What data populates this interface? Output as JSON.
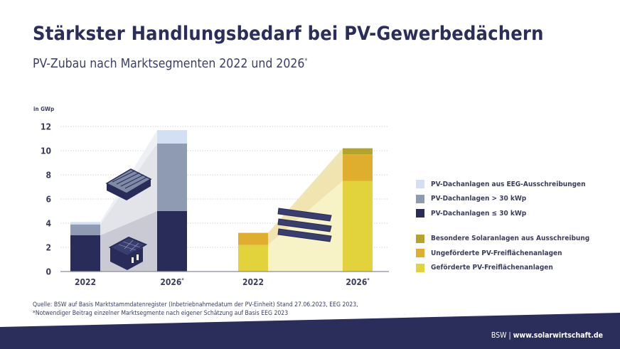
{
  "title": "Stärkster Handlungsbedarf bei PV-Gewerbedächern",
  "subtitle": "PV-Zubau nach Marktsegmenten 2022 und 2026",
  "subtitle_mark": "*",
  "chart_data": {
    "type": "bar",
    "stacked": true,
    "ylabel": "in GWp",
    "ylim": [
      0,
      12
    ],
    "yticks": [
      0,
      2,
      4,
      6,
      8,
      10,
      12
    ],
    "grid": true,
    "legend_position": "right",
    "categories": [
      "2022",
      "2026*",
      "2022",
      "2026*"
    ],
    "groups": [
      {
        "categories": [
          0,
          1
        ],
        "series": [
          {
            "name": "PV-Dachanlagen ≤ 30 kWp",
            "color": "#292c58",
            "values": [
              3.0,
              5.0
            ]
          },
          {
            "name": "PV-Dachanlagen > 30 kWp",
            "color": "#8e9bb2",
            "values": [
              0.9,
              5.6
            ]
          },
          {
            "name": "PV-Dachanlagen aus EEG-Ausschreibungen",
            "color": "#d3dff2",
            "values": [
              0.2,
              1.1
            ]
          }
        ]
      },
      {
        "categories": [
          2,
          3
        ],
        "series": [
          {
            "name": "Geförderte PV-Freiflächenanlagen",
            "color": "#e2d33c",
            "values": [
              2.2,
              7.5
            ]
          },
          {
            "name": "Ungeförderte PV-Freiflächenanlagen",
            "color": "#dfae2e",
            "values": [
              1.0,
              2.2
            ]
          },
          {
            "name": "Besondere Solaranlagen aus Ausschreibung",
            "color": "#b3a52c",
            "values": [
              0.0,
              0.5
            ]
          }
        ]
      }
    ]
  },
  "legend": [
    {
      "label": "PV-Dachanlagen aus EEG-Ausschreibungen",
      "color": "#d3dff2"
    },
    {
      "label": "PV-Dachanlagen > 30 kWp",
      "color": "#8e9bb2"
    },
    {
      "label": "PV-Dachanlagen ≤ 30 kWp",
      "color": "#292c58"
    },
    {
      "label": "Besondere Solaranlagen aus Ausschreibung",
      "color": "#b3a52c"
    },
    {
      "label": "Ungeförderte PV-Freiflächenanlagen",
      "color": "#dfae2e"
    },
    {
      "label": "Geförderte PV-Freiflächenanlagen",
      "color": "#e2d33c"
    }
  ],
  "source": {
    "line1": "Quelle: BSW auf Basis Marktstammdatenregister (Inbetriebnahmedatum der PV-Einheit) Stand 27.06.2023, EEG 2023,",
    "line2": "*Notwendiger Beitrag einzelner Marktsegmente nach eigener Schätzung auf Basis EEG 2023"
  },
  "footer": {
    "org": "BSW |",
    "url": "www.solarwirtschaft.de"
  },
  "colors": {
    "brand": "#2b2d5a"
  },
  "icons": [
    "commercial-roof-icon",
    "house-roof-icon",
    "solar-panel-rows-icon"
  ]
}
